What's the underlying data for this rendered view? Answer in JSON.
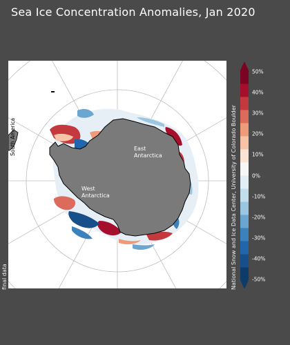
{
  "title": "Sea Ice Concentration Anomalies, Jan 2020",
  "map": {
    "labels": {
      "east_antarctica": [
        "East",
        "Antarctica"
      ],
      "west_antarctica": [
        "West",
        "Antarctica"
      ],
      "south_america": "South America"
    },
    "colors": {
      "background": "#4a4a4a",
      "ocean": "#ffffff",
      "land": "#7a7a7a",
      "grid": "#bdbdbd"
    }
  },
  "colorbar": {
    "unit": "%",
    "min": -50,
    "max": 50,
    "tick_labels": [
      "50%",
      "40%",
      "30%",
      "20%",
      "10%",
      "0%",
      "-10%",
      "-20%",
      "-30%",
      "-40%",
      "-50%"
    ],
    "colors": [
      "#0d3c6b",
      "#164f8a",
      "#2166ac",
      "#3b81bb",
      "#6aa6cf",
      "#9ac6e0",
      "#c2ddec",
      "#e2eef5",
      "#f7f7f7",
      "#fbe4d6",
      "#f7c3a6",
      "#ee9b7a",
      "#dd6b5b",
      "#c3393e",
      "#a50f2c",
      "#7a0421"
    ]
  },
  "credit": "National Snow and Ice Data Center, University of Colorado Boulder",
  "status": "final data"
}
